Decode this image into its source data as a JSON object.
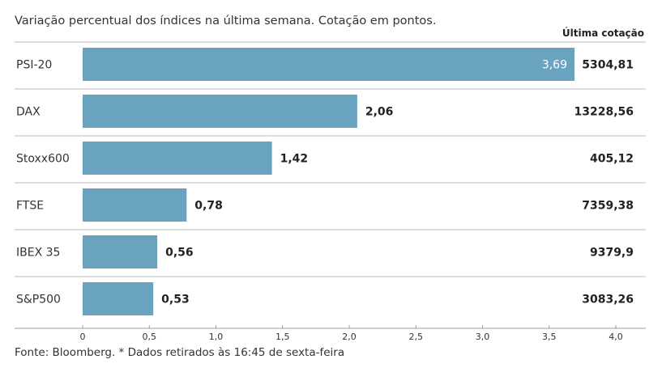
{
  "subtitle": "Variação percentual dos índices na última semana. Cotação em pontos.",
  "last_quote_header": "Última cotação",
  "source": "Fonte: Bloomberg.  * Dados retirados às 16:45 de sexta-feira",
  "colors": {
    "bar": "#6aa3bf",
    "label_inside": "#ffffff",
    "label_outside": "#222222",
    "separator": "#bdbdbd"
  },
  "chart_data": {
    "type": "bar",
    "orientation": "horizontal",
    "categories": [
      "PSI-20",
      "DAX",
      "Stoxx600",
      "FTSE",
      "IBEX 35",
      "S&P500"
    ],
    "values": [
      3.69,
      2.06,
      1.42,
      0.78,
      0.56,
      0.53
    ],
    "value_labels": [
      "3,69",
      "2,06",
      "1,42",
      "0,78",
      "0,56",
      "0,53"
    ],
    "last_quotes": [
      "5304,81",
      "13228,56",
      "405,12",
      "7359,38",
      "9379,9",
      "3083,26"
    ],
    "xlim": [
      0,
      4.0
    ],
    "x_ticks": [
      0,
      0.5,
      1.0,
      1.5,
      2.0,
      2.5,
      3.0,
      3.5,
      4.0
    ],
    "x_tick_labels": [
      "0",
      "0,5",
      "1,0",
      "1,5",
      "2,0",
      "2,5",
      "3,0",
      "3,5",
      "4,0"
    ],
    "grid": false
  }
}
